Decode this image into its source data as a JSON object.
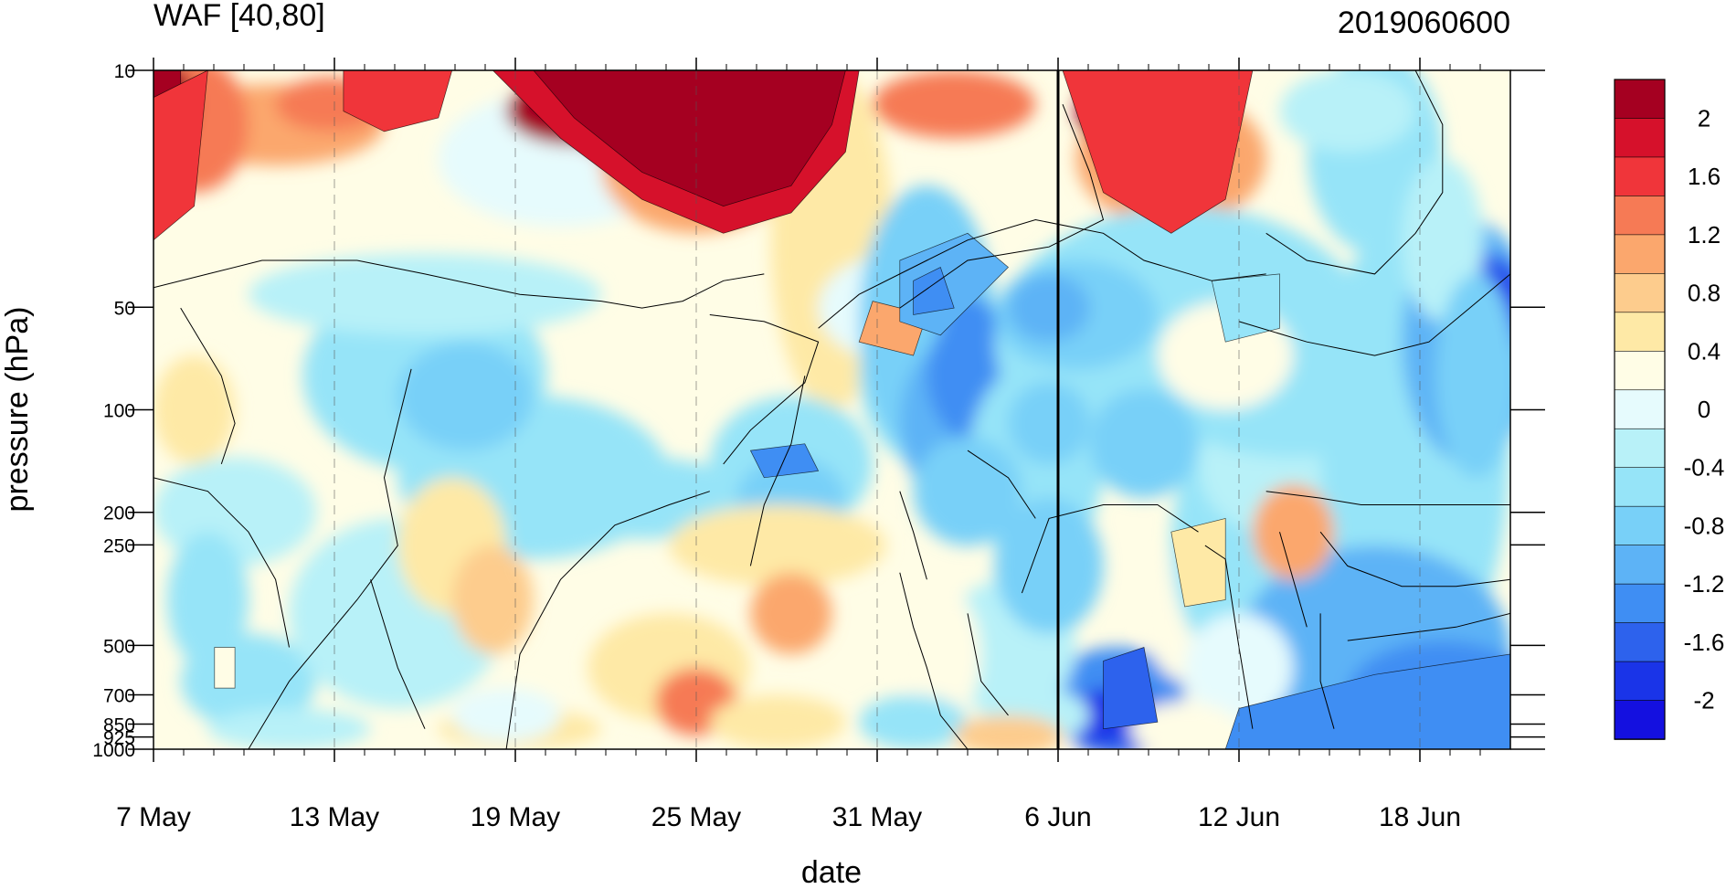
{
  "chart_data": {
    "type": "heatmap",
    "title": "WAF [40,80]",
    "title_right": "2019060600",
    "xlabel": "date",
    "ylabel": "pressure (hPa)",
    "x": [
      "7 May",
      "13 May",
      "19 May",
      "25 May",
      "31 May",
      "6 Jun",
      "12 Jun",
      "18 Jun"
    ],
    "x_days": [
      0,
      6,
      12,
      18,
      24,
      30,
      36,
      42
    ],
    "x_range_days": [
      0,
      45
    ],
    "y_ticks": [
      "10",
      "50",
      "100",
      "200",
      "250",
      "500",
      "700",
      "850",
      "925",
      "1000"
    ],
    "y_levels": [
      10,
      50,
      100,
      200,
      250,
      500,
      700,
      850,
      925,
      1000
    ],
    "y_scale": "reversed, stretched (levels spaced as on source)",
    "colorbar": {
      "labels": [
        "2",
        "1.6",
        "1.2",
        "0.8",
        "0.4",
        "0",
        "-0.4",
        "-0.8",
        "-1.2",
        "-1.6",
        "-2"
      ],
      "colors": [
        "#a50021",
        "#d6112b",
        "#f0353a",
        "#f67a55",
        "#fba76d",
        "#fdcc8d",
        "#fee9a6",
        "#fffde6",
        "#e6fbfd",
        "#b8f1f8",
        "#96e4f8",
        "#78d0f8",
        "#5db3f6",
        "#3f8ef3",
        "#2d62ed",
        "#1a34e8",
        "#1410e0"
      ]
    },
    "marker_line_day": 30,
    "grid": "dashed vertical at date ticks",
    "legend": "right colorbar"
  }
}
